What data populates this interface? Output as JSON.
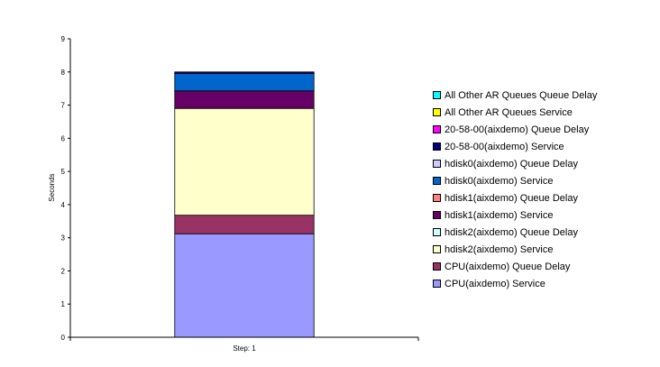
{
  "chart_data": {
    "type": "bar",
    "stacked": true,
    "categories": [
      "Step: 1"
    ],
    "ylabel": "Seconds",
    "xlabel": "",
    "ylim": [
      0,
      9
    ],
    "yticks": [
      "0",
      "1",
      "2",
      "3",
      "4",
      "5",
      "6",
      "7",
      "8",
      "9"
    ],
    "grid": false,
    "legend_position": "right",
    "series": [
      {
        "name": "CPU(aixdemo) Service",
        "color": "#9999ff",
        "values": [
          3.12
        ]
      },
      {
        "name": "CPU(aixdemo) Queue Delay",
        "color": "#993366",
        "values": [
          0.56
        ]
      },
      {
        "name": "hdisk2(aixdemo) Service",
        "color": "#ffffcc",
        "values": [
          3.22
        ]
      },
      {
        "name": "hdisk2(aixdemo) Queue Delay",
        "color": "#ccffff",
        "values": [
          0
        ]
      },
      {
        "name": "hdisk1(aixdemo) Service",
        "color": "#660066",
        "values": [
          0.53
        ]
      },
      {
        "name": "hdisk1(aixdemo) Queue Delay",
        "color": "#ff8080",
        "values": [
          0
        ]
      },
      {
        "name": "hdisk0(aixdemo) Service",
        "color": "#0066cc",
        "values": [
          0.52
        ]
      },
      {
        "name": "hdisk0(aixdemo) Queue Delay",
        "color": "#ccccff",
        "values": [
          0
        ]
      },
      {
        "name": "20-58-00(aixdemo) Service",
        "color": "#000080",
        "values": [
          0.05
        ]
      },
      {
        "name": "20-58-00(aixdemo) Queue Delay",
        "color": "#ff00ff",
        "values": [
          0
        ]
      },
      {
        "name": "All Other AR Queues Service",
        "color": "#ffff00",
        "values": [
          0
        ]
      },
      {
        "name": "All Other AR Queues Queue Delay",
        "color": "#00ffff",
        "values": [
          0
        ]
      }
    ]
  }
}
